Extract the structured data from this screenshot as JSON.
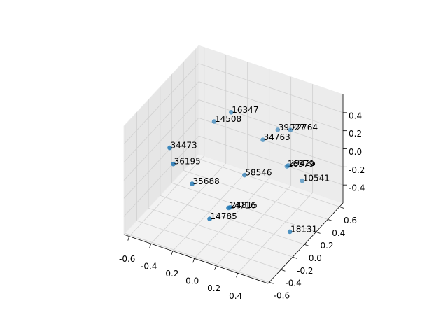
{
  "chart_data": {
    "type": "scatter3d",
    "labels": [
      "16347",
      "14508",
      "39027",
      "22764",
      "34763",
      "34473",
      "36195",
      "16379",
      "29425",
      "58546",
      "10541",
      "35688",
      "14716",
      "24815",
      "14785",
      "18131"
    ],
    "x": [
      -0.2,
      -0.33,
      0.17,
      0.26,
      0.06,
      -0.47,
      -0.41,
      0.26,
      0.3,
      0.02,
      0.39,
      -0.29,
      -0.02,
      0.0,
      -0.08,
      0.53
    ],
    "y": [
      0.38,
      0.33,
      0.49,
      0.54,
      0.44,
      -0.17,
      -0.22,
      0.48,
      0.43,
      0.2,
      0.5,
      -0.12,
      0.0,
      -0.01,
      -0.21,
      0.03
    ],
    "z": [
      0.24,
      0.12,
      0.12,
      0.12,
      0.0,
      0.12,
      0.0,
      -0.24,
      -0.18,
      -0.24,
      -0.36,
      -0.24,
      -0.48,
      -0.46,
      -0.48,
      -0.54
    ],
    "color": "#1f77b4",
    "xlim": [
      -0.65,
      0.68
    ],
    "ylim": [
      -0.62,
      0.66
    ],
    "zlim": [
      -0.6,
      0.6
    ],
    "xticks": [
      -0.6,
      -0.4,
      -0.2,
      {
        "value": 0,
        "label": "0.0"
      },
      0.2,
      0.4
    ],
    "yticks": [
      -0.6,
      -0.4,
      -0.2,
      {
        "value": 0,
        "label": "0.0"
      },
      0.2,
      0.4,
      0.6
    ],
    "zticks": [
      -0.4,
      -0.2,
      {
        "value": 0,
        "label": "0.0"
      },
      0.2,
      0.4
    ],
    "grid": true
  }
}
